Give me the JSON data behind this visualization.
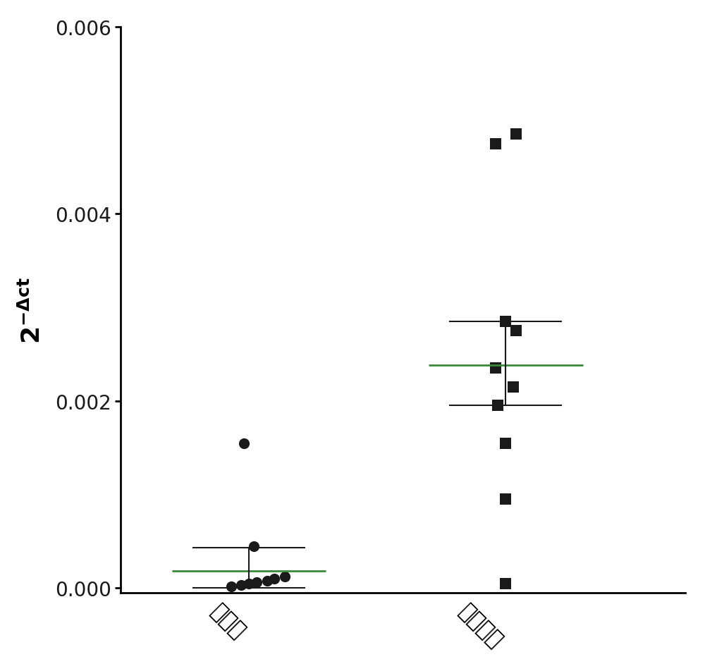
{
  "group1_label": "癌组织",
  "group2_label": "癌旁组织",
  "group1_points": [
    2e-05,
    3e-05,
    5e-05,
    6e-05,
    8e-05,
    0.0001,
    0.00012,
    0.00045,
    0.00155
  ],
  "group1_x_pos": [
    0.93,
    0.97,
    1.0,
    1.03,
    1.07,
    1.1,
    1.14,
    1.02,
    0.98
  ],
  "group2_points": [
    4.5e-05,
    0.00095,
    0.00155,
    0.00195,
    0.00215,
    0.00235,
    0.00275,
    0.00285,
    0.00475,
    0.00485
  ],
  "group2_x_pos": [
    2.0,
    2.0,
    2.0,
    1.97,
    2.03,
    1.96,
    2.04,
    2.0,
    1.96,
    2.04
  ],
  "group1_mean": 0.000185,
  "group1_upper": 0.00043,
  "group1_lower": 0.0,
  "group2_mean": 0.00238,
  "group2_upper": 0.00285,
  "group2_lower": 0.00195,
  "ylim": [
    -5e-05,
    0.006
  ],
  "yticks": [
    0.0,
    0.002,
    0.004,
    0.006
  ],
  "ylabel_base": "2",
  "ylabel_exp": "-Δct",
  "background_color": "#ffffff",
  "point_color": "#1a1a1a",
  "mean_line_color": "#3a8a3a",
  "errorbar_color": "#1a1a1a",
  "figsize": [
    10.0,
    9.53
  ]
}
